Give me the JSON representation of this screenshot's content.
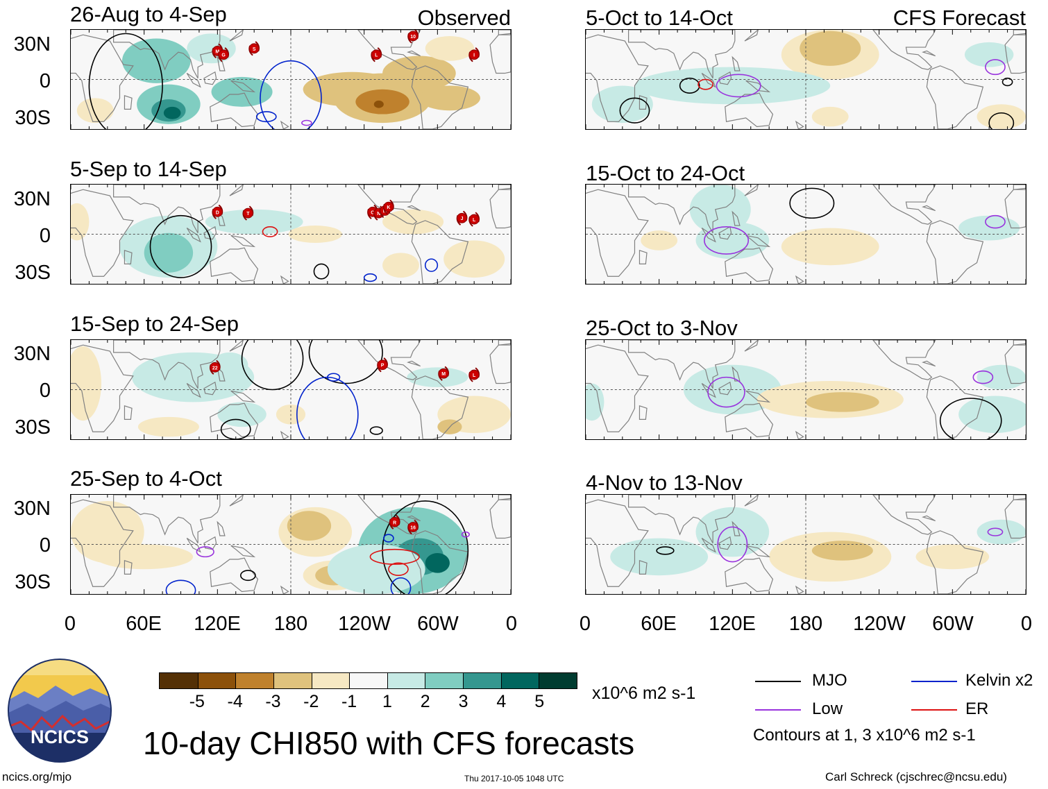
{
  "chart_data": {
    "type": "heatmap",
    "title": "10-day CHI850 with CFS forecasts",
    "variable": "CHI850 (850 hPa velocity potential) anomaly",
    "units": "x10^6 m2 s-1",
    "lat_ticks": [
      "30N",
      "0",
      "30S"
    ],
    "lon_ticks": [
      "0",
      "60E",
      "120E",
      "180",
      "120W",
      "60W",
      "0"
    ],
    "colorbar": {
      "ticks": [
        "-5",
        "-4",
        "-3",
        "-2",
        "-1",
        "1",
        "2",
        "3",
        "4",
        "5"
      ],
      "colors": [
        "#543005",
        "#8c510a",
        "#bf812d",
        "#dfc27d",
        "#f6e8c3",
        "#f7f7f7",
        "#c7eae5",
        "#80cdc1",
        "#35978f",
        "#01665e",
        "#003c30"
      ]
    },
    "legend": [
      {
        "label": "MJO",
        "color": "#000000"
      },
      {
        "label": "Kelvin x2",
        "color": "#0022cc"
      },
      {
        "label": "Low",
        "color": "#9933dd"
      },
      {
        "label": "ER",
        "color": "#dd1111"
      }
    ],
    "contours_note": "Contours at 1, 3 x10^6 m2 s-1",
    "panels": [
      {
        "title": "26-Aug to 4-Sep",
        "tag": "Observed",
        "storms": [
          "M",
          "G",
          "S",
          "L",
          "10",
          "I"
        ]
      },
      {
        "title": "5-Sep to 14-Sep",
        "tag": "",
        "storms": [
          "D",
          "T",
          "O",
          "N",
          "M",
          "K",
          "J",
          "L"
        ]
      },
      {
        "title": "15-Sep to 24-Sep",
        "tag": "",
        "storms": [
          "22",
          "P",
          "M",
          "L"
        ]
      },
      {
        "title": "25-Sep to 4-Oct",
        "tag": "",
        "storms": [
          "R",
          "16"
        ]
      },
      {
        "title": "5-Oct to 14-Oct",
        "tag": "CFS Forecast",
        "storms": []
      },
      {
        "title": "15-Oct to 24-Oct",
        "tag": "",
        "storms": []
      },
      {
        "title": "25-Oct to 3-Nov",
        "tag": "",
        "storms": []
      },
      {
        "title": "4-Nov to 13-Nov",
        "tag": "",
        "storms": []
      }
    ]
  },
  "logo_text": "NCICS",
  "footer": {
    "url": "ncics.org/mjo",
    "timestamp": "Thu 2017-10-05 1048 UTC",
    "author": "Carl Schreck (cjschrec@ncsu.edu)"
  }
}
